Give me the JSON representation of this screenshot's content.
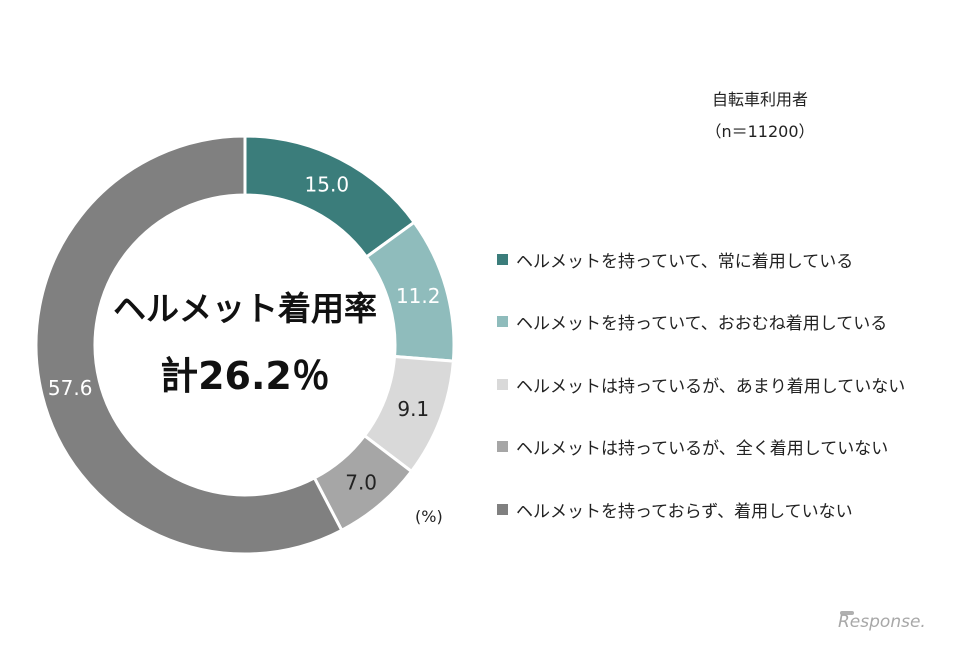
{
  "chart_data": {
    "type": "pie",
    "subtitle": [
      "自転車利用者",
      "（n＝11200）"
    ],
    "center_label": [
      "ヘルメット着用率",
      "計26.2％"
    ],
    "unit": "(%)",
    "slices": [
      {
        "label": "ヘルメットを持っていて、常に着用している",
        "value": 15.0,
        "value_label": "15.0",
        "color": "#3b7d7b",
        "label_color": "#ffffff"
      },
      {
        "label": "ヘルメットを持っていて、おおむね着用している",
        "value": 11.2,
        "value_label": "11.2",
        "color": "#8fbcbc",
        "label_color": "#ffffff"
      },
      {
        "label": "ヘルメットは持っているが、あまり着用していない",
        "value": 9.1,
        "value_label": "9.1",
        "color": "#d9d9d9",
        "label_color": "#222222"
      },
      {
        "label": "ヘルメットは持っているが、全く着用していない",
        "value": 7.0,
        "value_label": "7.0",
        "color": "#a6a6a6",
        "label_color": "#222222"
      },
      {
        "label": "ヘルメットを持っておらず、着用していない",
        "value": 57.6,
        "value_label": "57.6",
        "color": "#808080",
        "label_color": "#ffffff"
      }
    ]
  },
  "watermark": "Response."
}
